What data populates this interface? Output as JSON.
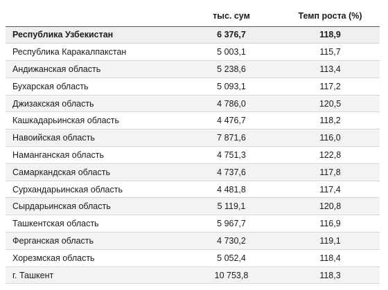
{
  "table": {
    "columns": [
      "",
      "тыс. сум",
      "Темп роста (%)"
    ],
    "rows": [
      {
        "region": "Республика Узбекистан",
        "value": "6 376,7",
        "growth": "118,9"
      },
      {
        "region": "Республика Каракалпакстан",
        "value": "5 003,1",
        "growth": "115,7"
      },
      {
        "region": "Андижанская область",
        "value": "5 238,6",
        "growth": "113,4"
      },
      {
        "region": "Бухарская область",
        "value": "5 093,1",
        "growth": "117,2"
      },
      {
        "region": "Джизакская область",
        "value": "4 786,0",
        "growth": "120,5"
      },
      {
        "region": "Кашкадарьинская область",
        "value": "4 476,7",
        "growth": "118,2"
      },
      {
        "region": "Навоийская область",
        "value": "7 871,6",
        "growth": "116,0"
      },
      {
        "region": "Наманганская область",
        "value": "4 751,3",
        "growth": "122,8"
      },
      {
        "region": "Самаркандская область",
        "value": "4 737,6",
        "growth": "117,8"
      },
      {
        "region": "Сурхандарьинская область",
        "value": "4 481,8",
        "growth": "117,4"
      },
      {
        "region": "Сырдарьинская область",
        "value": "5 119,1",
        "growth": "120,8"
      },
      {
        "region": "Ташкентская область",
        "value": "5 967,7",
        "growth": "116,9"
      },
      {
        "region": "Ферганская область",
        "value": "4 730,2",
        "growth": "119,1"
      },
      {
        "region": "Хорезмская область",
        "value": "5 052,4",
        "growth": "118,4"
      },
      {
        "region": "г. Ташкент",
        "value": "10 753,8",
        "growth": "118,3"
      }
    ]
  }
}
